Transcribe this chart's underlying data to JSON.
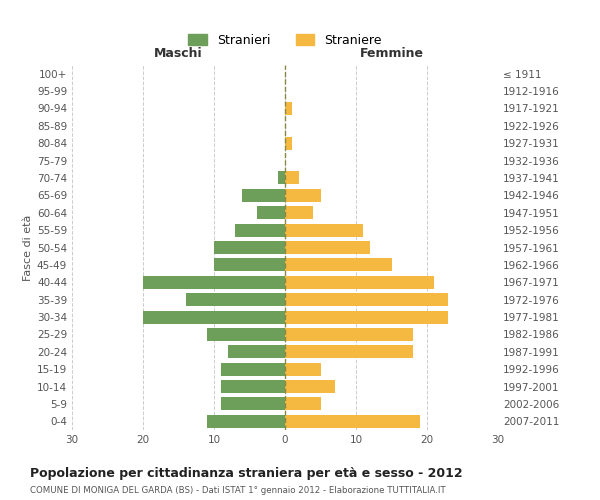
{
  "age_groups": [
    "100+",
    "95-99",
    "90-94",
    "85-89",
    "80-84",
    "75-79",
    "70-74",
    "65-69",
    "60-64",
    "55-59",
    "50-54",
    "45-49",
    "40-44",
    "35-39",
    "30-34",
    "25-29",
    "20-24",
    "15-19",
    "10-14",
    "5-9",
    "0-4"
  ],
  "birth_years": [
    "≤ 1911",
    "1912-1916",
    "1917-1921",
    "1922-1926",
    "1927-1931",
    "1932-1936",
    "1937-1941",
    "1942-1946",
    "1947-1951",
    "1952-1956",
    "1957-1961",
    "1962-1966",
    "1967-1971",
    "1972-1976",
    "1977-1981",
    "1982-1986",
    "1987-1991",
    "1992-1996",
    "1997-2001",
    "2002-2006",
    "2007-2011"
  ],
  "maschi": [
    0,
    0,
    0,
    0,
    0,
    0,
    1,
    6,
    4,
    7,
    10,
    10,
    20,
    14,
    20,
    11,
    8,
    9,
    9,
    9,
    11
  ],
  "femmine": [
    0,
    0,
    1,
    0,
    1,
    0,
    2,
    5,
    4,
    11,
    12,
    15,
    21,
    23,
    23,
    18,
    18,
    5,
    7,
    5,
    19
  ],
  "maschi_color": "#6d9e5a",
  "femmine_color": "#f5b942",
  "title": "Popolazione per cittadinanza straniera per età e sesso - 2012",
  "subtitle": "COMUNE DI MONIGA DEL GARDA (BS) - Dati ISTAT 1° gennaio 2012 - Elaborazione TUTTITALIA.IT",
  "ylabel_left": "Fasce di età",
  "xlabel_left": "Maschi",
  "xlabel_right": "Femmine",
  "legend_maschi": "Stranieri",
  "legend_femmine": "Straniere",
  "xlim": 30,
  "background_color": "#ffffff",
  "grid_color": "#cccccc",
  "dashed_line_color": "#888844"
}
